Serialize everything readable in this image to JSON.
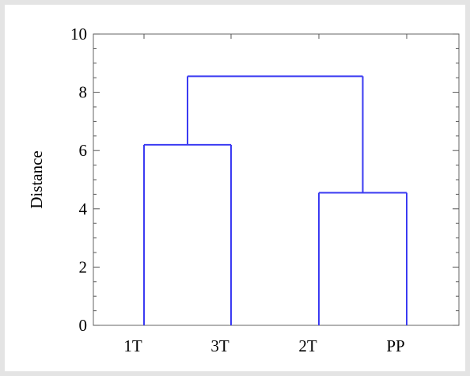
{
  "chart_data": {
    "type": "dendrogram",
    "title": "",
    "xlabel": "",
    "ylabel": "Distance",
    "ylim": [
      0,
      10
    ],
    "yticks": [
      0,
      2,
      4,
      6,
      8,
      10
    ],
    "leaves": [
      "1T",
      "3T",
      "2T",
      "PP"
    ],
    "merges": [
      {
        "left": "1T",
        "right": "3T",
        "height": 6.2
      },
      {
        "left": "2T",
        "right": "PP",
        "height": 4.55
      },
      {
        "left": "1T+3T",
        "right": "2T+PP",
        "height": 8.55
      }
    ],
    "line_color": "#3b3bf2",
    "grid": false
  }
}
